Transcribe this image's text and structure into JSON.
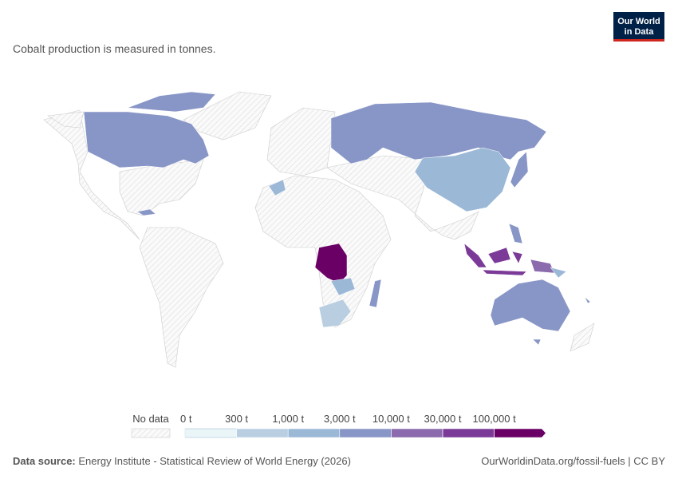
{
  "header": {
    "subtitle": "Cobalt production is measured in tonnes.",
    "logo": [
      "Our World",
      "in Data"
    ]
  },
  "legend": {
    "no_data": "No data",
    "ticks": [
      {
        "value": 0,
        "label": "0 t"
      },
      {
        "value": 300,
        "label": "300 t"
      },
      {
        "value": 1000,
        "label": "1,000 t"
      },
      {
        "value": 3000,
        "label": "3,000 t"
      },
      {
        "value": 10000,
        "label": "10,000 t"
      },
      {
        "value": 30000,
        "label": "30,000 t"
      },
      {
        "value": 100000,
        "label": "100,000 t"
      }
    ],
    "colors": [
      "#e9f5f7",
      "#b9cfe1",
      "#9bb8d7",
      "#8896c7",
      "#8b6aad",
      "#7b3a98",
      "#6a0066"
    ]
  },
  "footer": {
    "source_label": "Data source:",
    "source": "Energy Institute - Statistical Review of World Energy (2026)",
    "url": "OurWorldinData.org/fossil-fuels | CC BY"
  }
}
